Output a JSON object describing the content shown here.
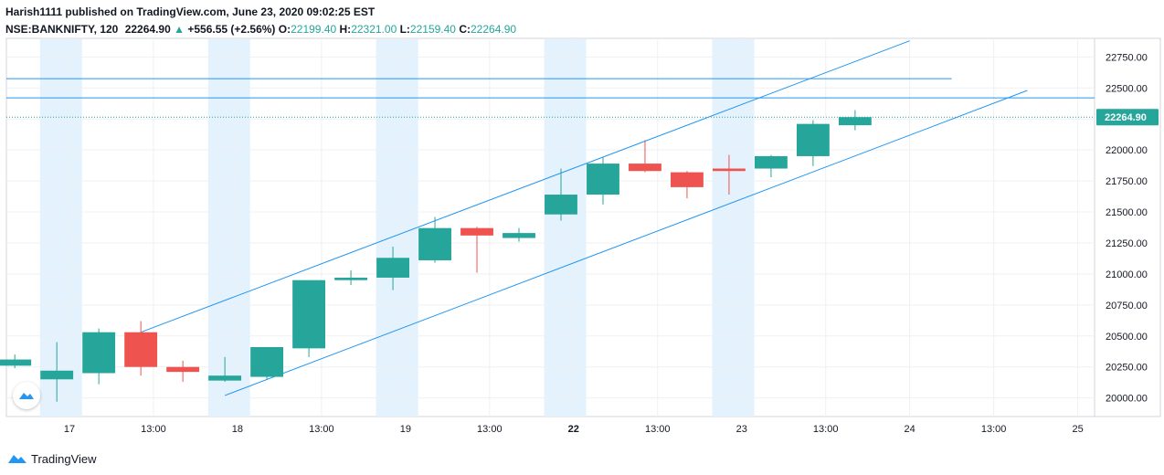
{
  "header": {
    "publish_line": "Harish1111 published on TradingView.com, June 23, 2020 09:02:25 EST",
    "symbol": "NSE:BANKNIFTY, 120",
    "last": "22264.90",
    "change_arrow": "▲",
    "change": "+556.55 (+2.56%)",
    "o_label": "O:",
    "o_value": "22199.40",
    "h_label": "H:",
    "h_value": "22321.00",
    "l_label": "L:",
    "l_value": "22159.40",
    "c_label": "C:",
    "c_value": "22264.90"
  },
  "footer": {
    "brand": "TradingView"
  },
  "colors": {
    "up": "#26a69a",
    "down": "#ef5350",
    "line": "#2196f3",
    "session": "#e3f2fd",
    "grid": "#eef0f3"
  },
  "chart_data": {
    "type": "candlestick",
    "symbol": "NSE:BANKNIFTY",
    "interval": "120",
    "ylim": [
      19850,
      22900
    ],
    "yticks": [
      20000,
      20250,
      20500,
      20750,
      21000,
      21250,
      21500,
      21750,
      22000,
      22250,
      22500,
      22750
    ],
    "ytick_labels": [
      "20000.00",
      "20250.00",
      "20500.00",
      "20750.00",
      "21000.00",
      "21250.00",
      "21500.00",
      "21750.00",
      "22000.00",
      "22250.00",
      "22500.00",
      "22750.00"
    ],
    "xlim": [
      -0.2,
      25.7
    ],
    "xticks": [
      {
        "x": 1.3,
        "label": "17",
        "bold": false
      },
      {
        "x": 3.3,
        "label": "13:00",
        "bold": false
      },
      {
        "x": 5.3,
        "label": "18",
        "bold": false
      },
      {
        "x": 7.3,
        "label": "13:00",
        "bold": false
      },
      {
        "x": 9.3,
        "label": "19",
        "bold": false
      },
      {
        "x": 11.3,
        "label": "13:00",
        "bold": false
      },
      {
        "x": 13.3,
        "label": "22",
        "bold": true
      },
      {
        "x": 15.3,
        "label": "13:00",
        "bold": false
      },
      {
        "x": 17.3,
        "label": "23",
        "bold": false
      },
      {
        "x": 19.3,
        "label": "13:00",
        "bold": false
      },
      {
        "x": 21.3,
        "label": "24",
        "bold": false
      },
      {
        "x": 23.3,
        "label": "13:00",
        "bold": false
      },
      {
        "x": 25.3,
        "label": "25",
        "bold": false
      }
    ],
    "session_bands": [
      [
        0.6,
        1.6
      ],
      [
        4.6,
        5.6
      ],
      [
        8.6,
        9.6
      ],
      [
        12.6,
        13.6
      ],
      [
        16.6,
        17.6
      ]
    ],
    "candles": [
      {
        "x": 0,
        "o": 20260,
        "h": 20350,
        "l": 20240,
        "c": 20310
      },
      {
        "x": 1,
        "o": 20150,
        "h": 20450,
        "l": 19970,
        "c": 20220
      },
      {
        "x": 2,
        "o": 20200,
        "h": 20560,
        "l": 20110,
        "c": 20530
      },
      {
        "x": 3,
        "o": 20530,
        "h": 20620,
        "l": 20180,
        "c": 20250
      },
      {
        "x": 4,
        "o": 20250,
        "h": 20300,
        "l": 20130,
        "c": 20210
      },
      {
        "x": 5,
        "o": 20140,
        "h": 20330,
        "l": 20130,
        "c": 20180
      },
      {
        "x": 6,
        "o": 20170,
        "h": 20410,
        "l": 20150,
        "c": 20410
      },
      {
        "x": 7,
        "o": 20400,
        "h": 20950,
        "l": 20330,
        "c": 20950
      },
      {
        "x": 8,
        "o": 20950,
        "h": 21030,
        "l": 20910,
        "c": 20970
      },
      {
        "x": 9,
        "o": 20970,
        "h": 21220,
        "l": 20870,
        "c": 21130
      },
      {
        "x": 10,
        "o": 21110,
        "h": 21460,
        "l": 21090,
        "c": 21370
      },
      {
        "x": 11,
        "o": 21370,
        "h": 21380,
        "l": 21010,
        "c": 21310
      },
      {
        "x": 12,
        "o": 21290,
        "h": 21370,
        "l": 21260,
        "c": 21330
      },
      {
        "x": 13,
        "o": 21480,
        "h": 21850,
        "l": 21430,
        "c": 21640
      },
      {
        "x": 14,
        "o": 21640,
        "h": 21940,
        "l": 21560,
        "c": 21890
      },
      {
        "x": 15,
        "o": 21890,
        "h": 22080,
        "l": 21820,
        "c": 21830
      },
      {
        "x": 16,
        "o": 21820,
        "h": 21830,
        "l": 21610,
        "c": 21700
      },
      {
        "x": 17,
        "o": 21850,
        "h": 21960,
        "l": 21640,
        "c": 21830
      },
      {
        "x": 18,
        "o": 21850,
        "h": 21960,
        "l": 21780,
        "c": 21950
      },
      {
        "x": 19,
        "o": 21950,
        "h": 22240,
        "l": 21870,
        "c": 22210
      },
      {
        "x": 20,
        "o": 22199.4,
        "h": 22321,
        "l": 22159.4,
        "c": 22264.9
      }
    ],
    "trend_lines": [
      {
        "x1": 3.0,
        "y1": 20530,
        "x2": 21.3,
        "y2": 22880
      },
      {
        "x1": 5.0,
        "y1": 20020,
        "x2": 24.1,
        "y2": 22480
      }
    ],
    "horizontal_lines": [
      {
        "y": 22575,
        "x_end": 22.3
      },
      {
        "y": 22420,
        "x_end": null
      }
    ],
    "last_price": 22264.9,
    "last_price_label": "22264.90"
  }
}
